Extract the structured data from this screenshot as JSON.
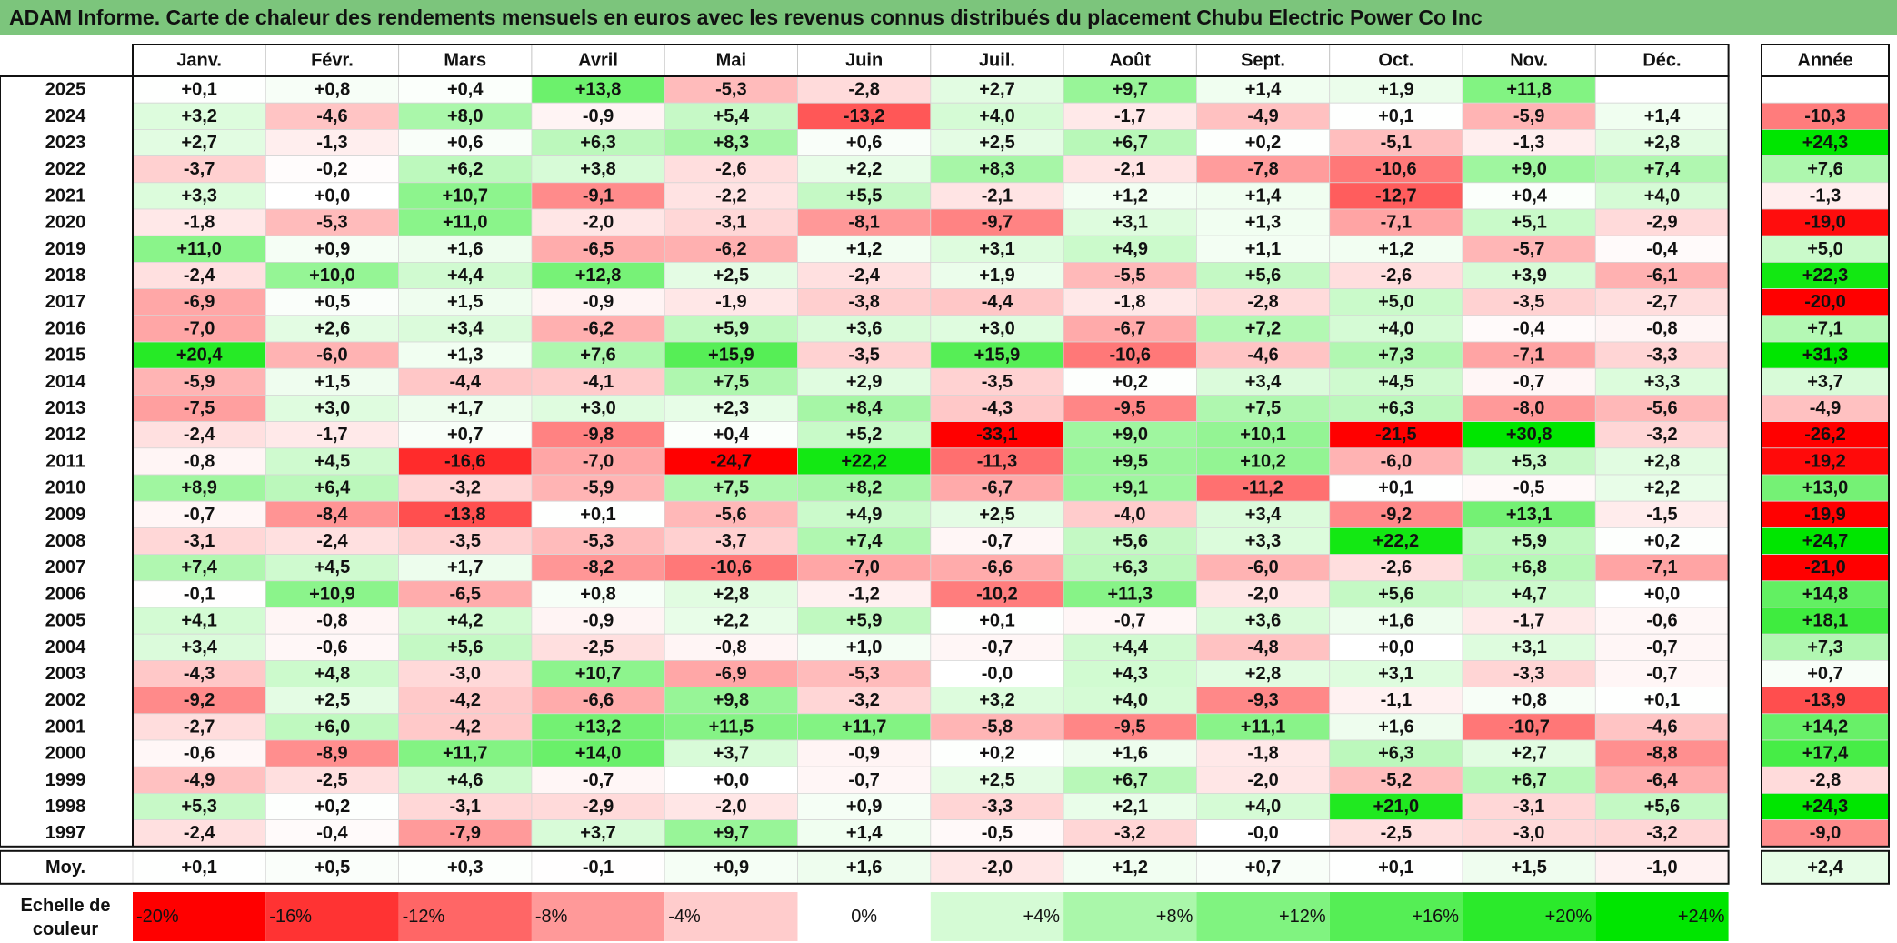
{
  "title": "ADAM Informe. Carte de chaleur des rendements mensuels en euros avec les revenus connus distribués du placement Chubu Electric Power Co Inc",
  "chart_data": {
    "type": "heatmap",
    "months": [
      "Janv.",
      "Févr.",
      "Mars",
      "Avril",
      "Mai",
      "Juin",
      "Juil.",
      "Août",
      "Sept.",
      "Oct.",
      "Nov.",
      "Déc."
    ],
    "year_label": "Année",
    "avg_label": "Moy.",
    "years": [
      "2025",
      "2024",
      "2023",
      "2022",
      "2021",
      "2020",
      "2019",
      "2018",
      "2017",
      "2016",
      "2015",
      "2014",
      "2013",
      "2012",
      "2011",
      "2010",
      "2009",
      "2008",
      "2007",
      "2006",
      "2005",
      "2004",
      "2003",
      "2002",
      "2001",
      "2000",
      "1999",
      "1998",
      "1997"
    ],
    "values": [
      [
        "+0,1",
        "+0,8",
        "+0,4",
        "+13,8",
        "-5,3",
        "-2,8",
        "+2,7",
        "+9,7",
        "+1,4",
        "+1,9",
        "+11,8",
        ""
      ],
      [
        "+3,2",
        "-4,6",
        "+8,0",
        "-0,9",
        "+5,4",
        "-13,2",
        "+4,0",
        "-1,7",
        "-4,9",
        "+0,1",
        "-5,9",
        "+1,4"
      ],
      [
        "+2,7",
        "-1,3",
        "+0,6",
        "+6,3",
        "+8,3",
        "+0,6",
        "+2,5",
        "+6,7",
        "+0,2",
        "-5,1",
        "-1,3",
        "+2,8"
      ],
      [
        "-3,7",
        "-0,2",
        "+6,2",
        "+3,8",
        "-2,6",
        "+2,2",
        "+8,3",
        "-2,1",
        "-7,8",
        "-10,6",
        "+9,0",
        "+7,4"
      ],
      [
        "+3,3",
        "+0,0",
        "+10,7",
        "-9,1",
        "-2,2",
        "+5,5",
        "-2,1",
        "+1,2",
        "+1,4",
        "-12,7",
        "+0,4",
        "+4,0"
      ],
      [
        "-1,8",
        "-5,3",
        "+11,0",
        "-2,0",
        "-3,1",
        "-8,1",
        "-9,7",
        "+3,1",
        "+1,3",
        "-7,1",
        "+5,1",
        "-2,9"
      ],
      [
        "+11,0",
        "+0,9",
        "+1,6",
        "-6,5",
        "-6,2",
        "+1,2",
        "+3,1",
        "+4,9",
        "+1,1",
        "+1,2",
        "-5,7",
        "-0,4"
      ],
      [
        "-2,4",
        "+10,0",
        "+4,4",
        "+12,8",
        "+2,5",
        "-2,4",
        "+1,9",
        "-5,5",
        "+5,6",
        "-2,6",
        "+3,9",
        "-6,1"
      ],
      [
        "-6,9",
        "+0,5",
        "+1,5",
        "-0,9",
        "-1,9",
        "-3,8",
        "-4,4",
        "-1,8",
        "-2,8",
        "+5,0",
        "-3,5",
        "-2,7"
      ],
      [
        "-7,0",
        "+2,6",
        "+3,4",
        "-6,2",
        "+5,9",
        "+3,6",
        "+3,0",
        "-6,7",
        "+7,2",
        "+4,0",
        "-0,4",
        "-0,8"
      ],
      [
        "+20,4",
        "-6,0",
        "+1,3",
        "+7,6",
        "+15,9",
        "-3,5",
        "+15,9",
        "-10,6",
        "-4,6",
        "+7,3",
        "-7,1",
        "-3,3"
      ],
      [
        "-5,9",
        "+1,5",
        "-4,4",
        "-4,1",
        "+7,5",
        "+2,9",
        "-3,5",
        "+0,2",
        "+3,4",
        "+4,5",
        "-0,7",
        "+3,3"
      ],
      [
        "-7,5",
        "+3,0",
        "+1,7",
        "+3,0",
        "+2,3",
        "+8,4",
        "-4,3",
        "-9,5",
        "+7,5",
        "+6,3",
        "-8,0",
        "-5,6"
      ],
      [
        "-2,4",
        "-1,7",
        "+0,7",
        "-9,8",
        "+0,4",
        "+5,2",
        "-33,1",
        "+9,0",
        "+10,1",
        "-21,5",
        "+30,8",
        "-3,2"
      ],
      [
        "-0,8",
        "+4,5",
        "-16,6",
        "-7,0",
        "-24,7",
        "+22,2",
        "-11,3",
        "+9,5",
        "+10,2",
        "-6,0",
        "+5,3",
        "+2,8"
      ],
      [
        "+8,9",
        "+6,4",
        "-3,2",
        "-5,9",
        "+7,5",
        "+8,2",
        "-6,7",
        "+9,1",
        "-11,2",
        "+0,1",
        "-0,5",
        "+2,2"
      ],
      [
        "-0,7",
        "-8,4",
        "-13,8",
        "+0,1",
        "-5,6",
        "+4,9",
        "+2,5",
        "-4,0",
        "+3,4",
        "-9,2",
        "+13,1",
        "-1,5"
      ],
      [
        "-3,1",
        "-2,4",
        "-3,5",
        "-5,3",
        "-3,7",
        "+7,4",
        "-0,7",
        "+5,6",
        "+3,3",
        "+22,2",
        "+5,9",
        "+0,2"
      ],
      [
        "+7,4",
        "+4,5",
        "+1,7",
        "-8,2",
        "-10,6",
        "-7,0",
        "-6,6",
        "+6,3",
        "-6,0",
        "-2,6",
        "+6,8",
        "-7,1"
      ],
      [
        "-0,1",
        "+10,9",
        "-6,5",
        "+0,8",
        "+2,8",
        "-1,2",
        "-10,2",
        "+11,3",
        "-2,0",
        "+5,6",
        "+4,7",
        "+0,0"
      ],
      [
        "+4,1",
        "-0,8",
        "+4,2",
        "-0,9",
        "+2,2",
        "+5,9",
        "+0,1",
        "-0,7",
        "+3,6",
        "+1,6",
        "-1,7",
        "-0,6"
      ],
      [
        "+3,4",
        "-0,6",
        "+5,6",
        "-2,5",
        "-0,8",
        "+1,0",
        "-0,7",
        "+4,4",
        "-4,8",
        "+0,0",
        "+3,1",
        "-0,7"
      ],
      [
        "-4,3",
        "+4,8",
        "-3,0",
        "+10,7",
        "-6,9",
        "-5,3",
        "-0,0",
        "+4,3",
        "+2,8",
        "+3,1",
        "-3,3",
        "-0,7"
      ],
      [
        "-9,2",
        "+2,5",
        "-4,2",
        "-6,6",
        "+9,8",
        "-3,2",
        "+3,2",
        "+4,0",
        "-9,3",
        "-1,1",
        "+0,8",
        "+0,1"
      ],
      [
        "-2,7",
        "+6,0",
        "-4,2",
        "+13,2",
        "+11,5",
        "+11,7",
        "-5,8",
        "-9,5",
        "+11,1",
        "+1,6",
        "-10,7",
        "-4,6"
      ],
      [
        "-0,6",
        "-8,9",
        "+11,7",
        "+14,0",
        "+3,7",
        "-0,9",
        "+0,2",
        "+1,6",
        "-1,8",
        "+6,3",
        "+2,7",
        "-8,8"
      ],
      [
        "-4,9",
        "-2,5",
        "+4,6",
        "-0,7",
        "+0,0",
        "-0,7",
        "+2,5",
        "+6,7",
        "-2,0",
        "-5,2",
        "+6,7",
        "-6,4"
      ],
      [
        "+5,3",
        "+0,2",
        "-3,1",
        "-2,9",
        "-2,0",
        "+0,9",
        "-3,3",
        "+2,1",
        "+4,0",
        "+21,0",
        "-3,1",
        "+5,6"
      ],
      [
        "-2,4",
        "-0,4",
        "-7,9",
        "+3,7",
        "+9,7",
        "+1,4",
        "-0,5",
        "-3,2",
        "-0,0",
        "-2,5",
        "-3,0",
        "-3,2"
      ]
    ],
    "annual": [
      "",
      "-10,3",
      "+24,3",
      "+7,6",
      "-1,3",
      "-19,0",
      "+5,0",
      "+22,3",
      "-20,0",
      "+7,1",
      "+31,3",
      "+3,7",
      "-4,9",
      "-26,2",
      "-19,2",
      "+13,0",
      "-19,9",
      "+24,7",
      "-21,0",
      "+14,8",
      "+18,1",
      "+7,3",
      "+0,7",
      "-13,9",
      "+14,2",
      "+17,4",
      "-2,8",
      "+24,3",
      "-9,0"
    ],
    "averages": [
      "+0,1",
      "+0,5",
      "+0,3",
      "-0,1",
      "+0,9",
      "+1,6",
      "-2,0",
      "+1,2",
      "+0,7",
      "+0,1",
      "+1,5",
      "-1,0"
    ],
    "average_annual": "+2,4",
    "scale_label": [
      "Echelle de",
      "couleur"
    ],
    "scale": [
      {
        "label": "-20%",
        "value": -20
      },
      {
        "label": "-16%",
        "value": -16
      },
      {
        "label": "-12%",
        "value": -12
      },
      {
        "label": "-8%",
        "value": -8
      },
      {
        "label": "-4%",
        "value": -4
      },
      {
        "label": "0%",
        "value": 0
      },
      {
        "label": "+4%",
        "value": 4
      },
      {
        "label": "+8%",
        "value": 8
      },
      {
        "label": "+12%",
        "value": 12
      },
      {
        "label": "+16%",
        "value": 16
      },
      {
        "label": "+20%",
        "value": 20
      },
      {
        "label": "+24%",
        "value": 24
      }
    ],
    "colors": {
      "negative": "#ff0000",
      "positive": "#00e600",
      "neutral": "#ffffff",
      "title_bar": "#7cc57c"
    }
  }
}
